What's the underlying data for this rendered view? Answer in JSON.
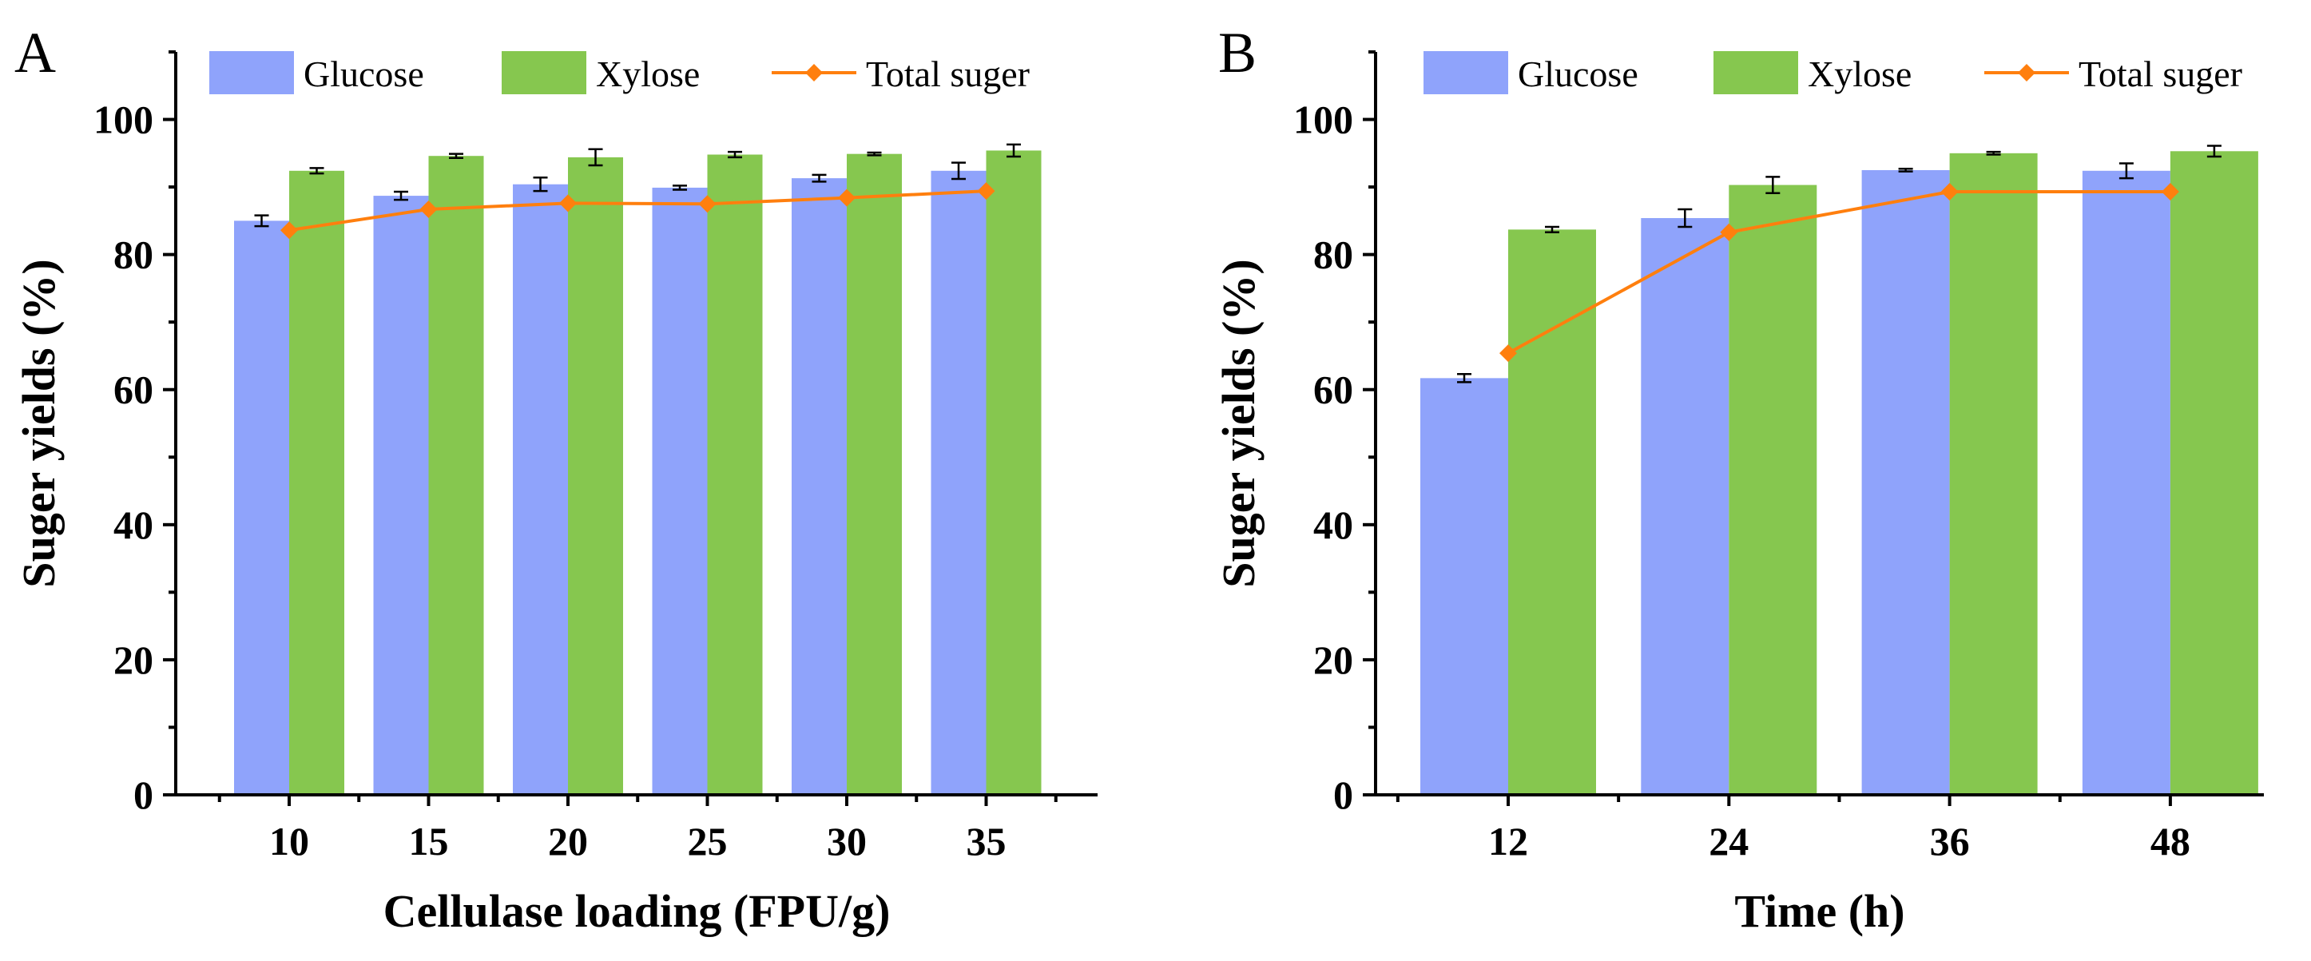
{
  "colors": {
    "glucose": "#8FA3FB",
    "xylose": "#86C74F",
    "total": "#FF7F0E"
  },
  "chart_data": [
    {
      "type": "bar",
      "panel_label": "A",
      "categories": [
        "10",
        "15",
        "20",
        "25",
        "30",
        "35"
      ],
      "series": [
        {
          "name": "Glucose",
          "kind": "bar",
          "values": [
            85.0,
            88.7,
            90.4,
            89.9,
            91.3,
            92.4
          ],
          "errors": [
            0.8,
            0.6,
            1.0,
            0.3,
            0.5,
            1.2
          ]
        },
        {
          "name": "Xylose",
          "kind": "bar",
          "values": [
            92.4,
            94.6,
            94.4,
            94.8,
            94.9,
            95.4
          ],
          "errors": [
            0.4,
            0.3,
            1.2,
            0.4,
            0.2,
            0.9
          ]
        },
        {
          "name": "Total suger",
          "kind": "line",
          "values": [
            83.6,
            86.7,
            87.6,
            87.5,
            88.4,
            89.4
          ]
        }
      ],
      "xlabel": "Cellulase loading (FPU/g)",
      "ylabel": "Suger yields (%)",
      "ylim": [
        0,
        110
      ],
      "yticks": [
        "0",
        "20",
        "40",
        "60",
        "80",
        "100"
      ],
      "legend": "top"
    },
    {
      "type": "bar",
      "panel_label": "B",
      "categories": [
        "12",
        "24",
        "36",
        "48"
      ],
      "series": [
        {
          "name": "Glucose",
          "kind": "bar",
          "values": [
            61.7,
            85.4,
            92.5,
            92.4
          ],
          "errors": [
            0.6,
            1.3,
            0.2,
            1.1
          ]
        },
        {
          "name": "Xylose",
          "kind": "bar",
          "values": [
            83.7,
            90.3,
            95.0,
            95.3
          ],
          "errors": [
            0.4,
            1.2,
            0.2,
            0.8
          ]
        },
        {
          "name": "Total suger",
          "kind": "line",
          "values": [
            65.4,
            83.3,
            89.3,
            89.3
          ]
        }
      ],
      "xlabel": "Time (h)",
      "ylabel": "Suger yields (%)",
      "ylim": [
        0,
        110
      ],
      "yticks": [
        "0",
        "20",
        "40",
        "60",
        "80",
        "100"
      ],
      "legend": "top"
    }
  ]
}
